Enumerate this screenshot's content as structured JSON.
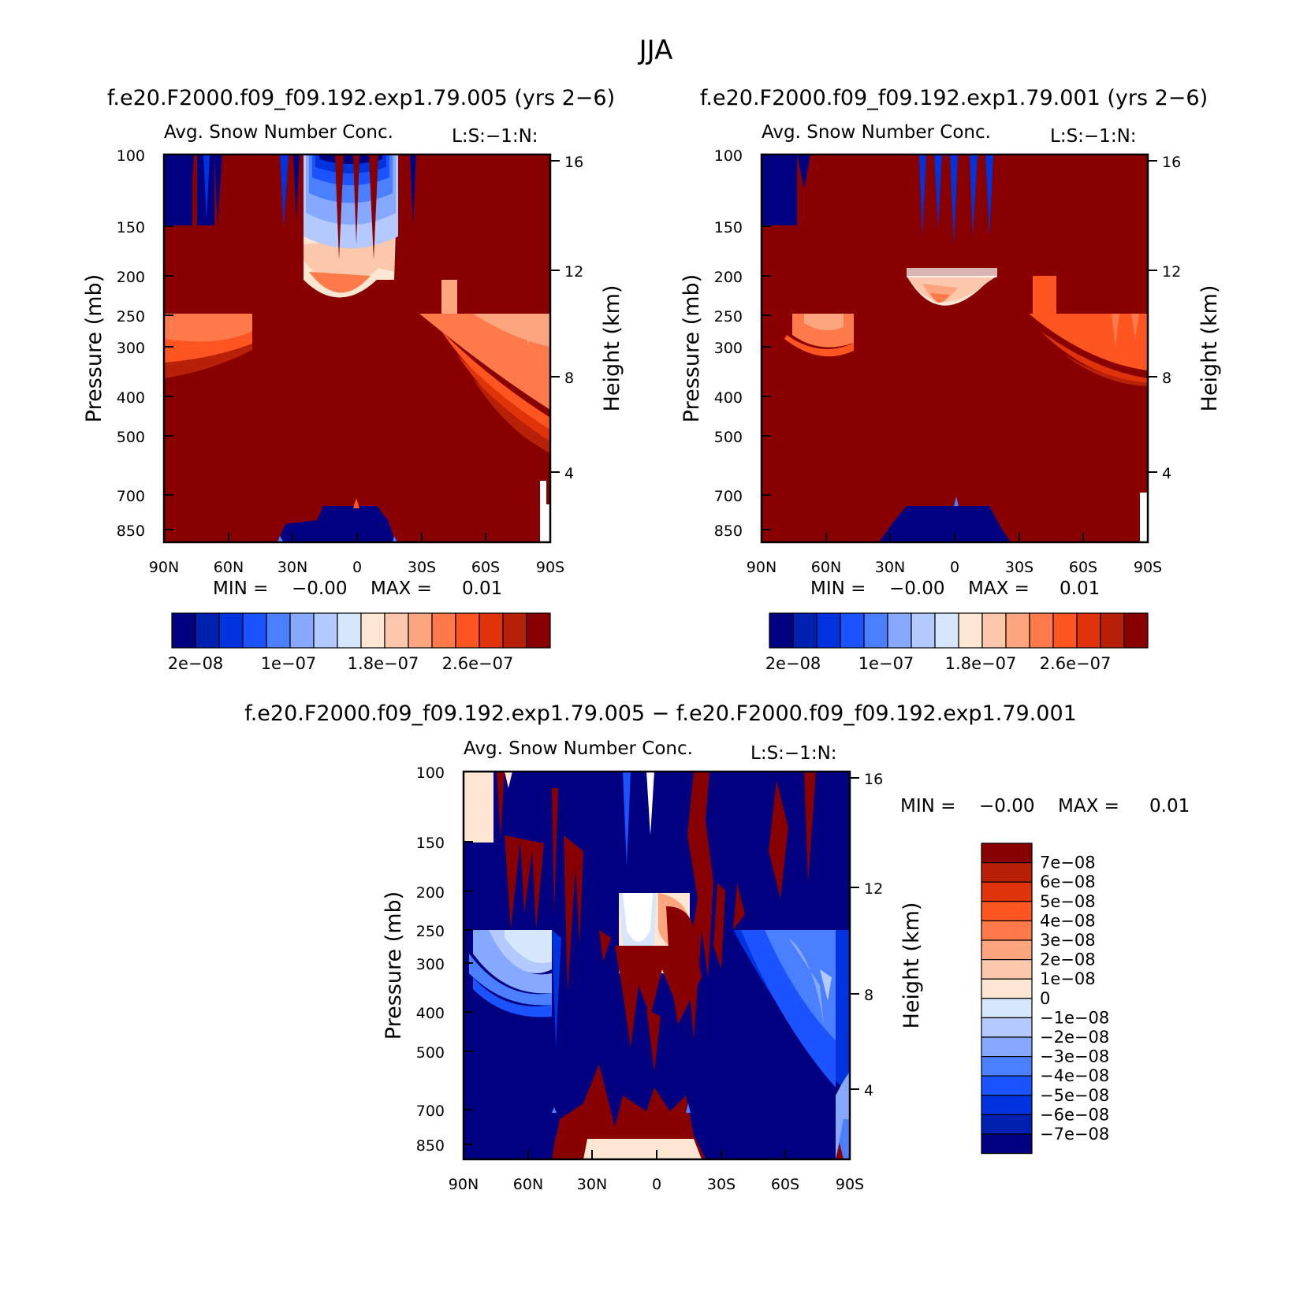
{
  "figure": {
    "title": "JJA"
  },
  "colors": {
    "blue_scale": [
      "#000080",
      "#0020b0",
      "#0033e0",
      "#1a53ff",
      "#4a7fff",
      "#86a8ff",
      "#b3c9ff",
      "#d6e6fb"
    ],
    "red_scale": [
      "#fde6d2",
      "#fcc8ac",
      "#fca57e",
      "#ff7a4a",
      "#ff5520",
      "#e0330a",
      "#b92008",
      "#880000"
    ],
    "diff_scale": [
      "#000080",
      "#0020b0",
      "#0033e0",
      "#1a53ff",
      "#4a7fff",
      "#86a8ff",
      "#b3c9ff",
      "#d6e6fb",
      "#fde6d2",
      "#fcc8ac",
      "#fca57e",
      "#ff7a4a",
      "#ff5520",
      "#e0330a",
      "#b92008",
      "#880000"
    ]
  },
  "chart_data": [
    {
      "type": "heatmap",
      "id": "panel-a",
      "title": "f.e20.F2000.f09_f09.192.exp1.79.005 (yrs 2−6)",
      "subtitle": "Avg. Snow Number Conc.",
      "corner_label": "L:S:−1:N:",
      "xlabel": "",
      "ylabel": "Pressure (mb)",
      "ylabel_right": "Height (km)",
      "x_ticks": [
        "90N",
        "60N",
        "30N",
        "0",
        "30S",
        "60S",
        "90S"
      ],
      "y_ticks": [
        "100",
        "150",
        "200",
        "250",
        "300",
        "400",
        "500",
        "700",
        "850"
      ],
      "y_ticks_right": [
        "16",
        "12",
        "8",
        "4"
      ],
      "stats": {
        "min_label": "MIN =",
        "min": "−0.00",
        "max_label": "MAX =",
        "max": "0.01"
      },
      "colorbar_labels": [
        "2e−08",
        "1e−07",
        "1.8e−07",
        "2.6e−07"
      ]
    },
    {
      "type": "heatmap",
      "id": "panel-b",
      "title": "f.e20.F2000.f09_f09.192.exp1.79.001 (yrs 2−6)",
      "subtitle": "Avg. Snow Number Conc.",
      "corner_label": "L:S:−1:N:",
      "xlabel": "",
      "ylabel": "Pressure (mb)",
      "ylabel_right": "Height (km)",
      "x_ticks": [
        "90N",
        "60N",
        "30N",
        "0",
        "30S",
        "60S",
        "90S"
      ],
      "y_ticks": [
        "100",
        "150",
        "200",
        "250",
        "300",
        "400",
        "500",
        "700",
        "850"
      ],
      "y_ticks_right": [
        "16",
        "12",
        "8",
        "4"
      ],
      "stats": {
        "min_label": "MIN =",
        "min": "−0.00",
        "max_label": "MAX =",
        "max": "0.01"
      },
      "colorbar_labels": [
        "2e−08",
        "1e−07",
        "1.8e−07",
        "2.6e−07"
      ]
    },
    {
      "type": "heatmap",
      "id": "panel-c",
      "title": "f.e20.F2000.f09_f09.192.exp1.79.005 − f.e20.F2000.f09_f09.192.exp1.79.001",
      "subtitle": "Avg. Snow Number Conc.",
      "corner_label": "L:S:−1:N:",
      "xlabel": "",
      "ylabel": "Pressure (mb)",
      "ylabel_right": "Height (km)",
      "x_ticks": [
        "90N",
        "60N",
        "30N",
        "0",
        "30S",
        "60S",
        "90S"
      ],
      "y_ticks": [
        "100",
        "150",
        "200",
        "250",
        "300",
        "400",
        "500",
        "700",
        "850"
      ],
      "y_ticks_right": [
        "16",
        "12",
        "8",
        "4"
      ],
      "stats": {
        "min_label": "MIN =",
        "min": "−0.00",
        "max_label": "MAX =",
        "max": "0.01"
      },
      "colorbar_labels": [
        "7e−08",
        "6e−08",
        "5e−08",
        "4e−08",
        "3e−08",
        "2e−08",
        "1e−08",
        "0",
        "−1e−08",
        "−2e−08",
        "−3e−08",
        "−4e−08",
        "−5e−08",
        "−6e−08",
        "−7e−08"
      ]
    }
  ]
}
